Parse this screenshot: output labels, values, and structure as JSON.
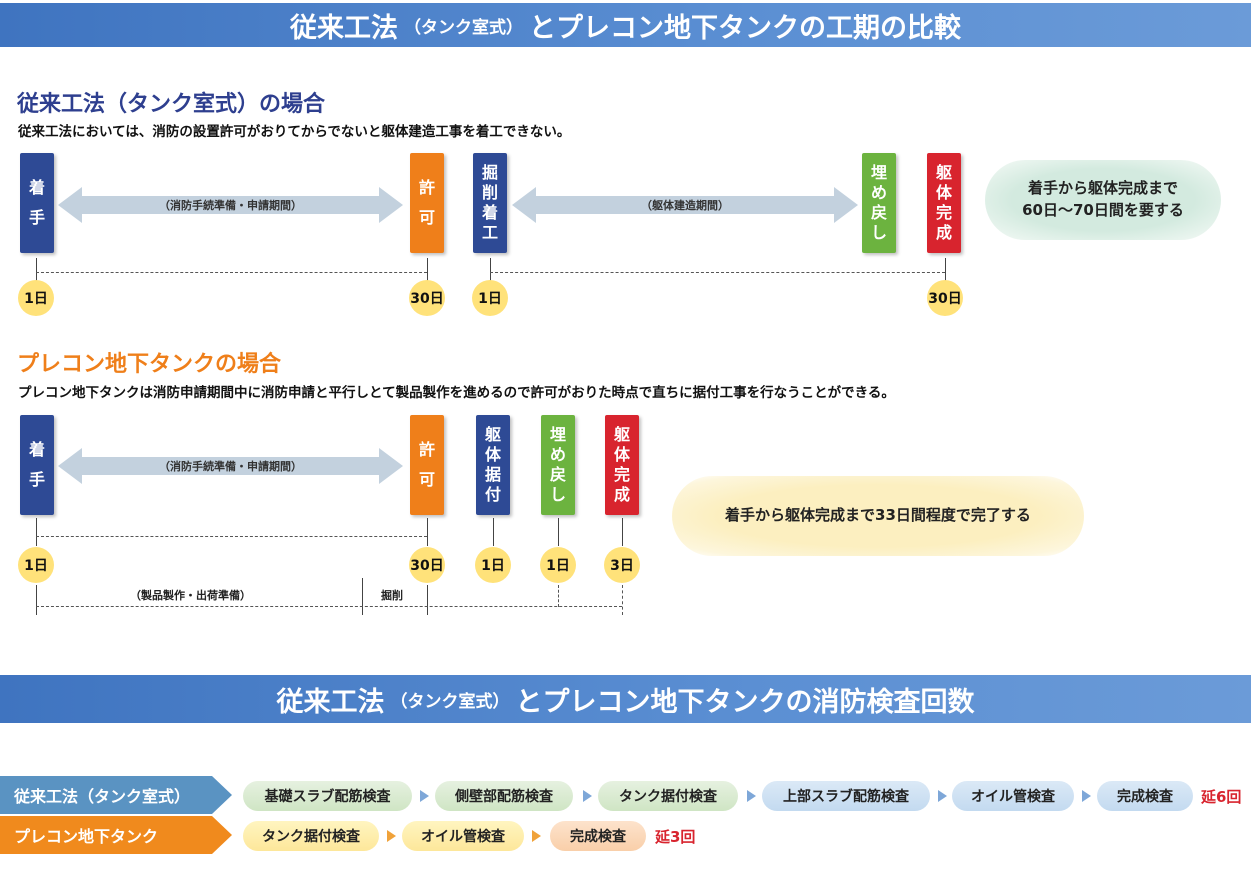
{
  "banner1": {
    "part1": "従来工法",
    "part2": "（タンク室式）",
    "part3": "とプレコン地下タンクの工期の比較"
  },
  "conventional": {
    "title": "従来工法（タンク室式）の場合",
    "desc": "従来工法においては、消防の設置許可がおりてからでないと躯体建造工事を着工できない。",
    "bars": [
      {
        "lines": [
          "着",
          "手"
        ],
        "color": "#2e4a95"
      },
      {
        "lines": [
          "許",
          "可"
        ],
        "color": "#ef7f1a"
      },
      {
        "lines": [
          "掘",
          "削",
          "着",
          "工"
        ],
        "color": "#2e4a95"
      },
      {
        "lines": [
          "埋",
          "め",
          "戻",
          "し"
        ],
        "color": "#6cb33f"
      },
      {
        "lines": [
          "躯",
          "体",
          "完",
          "成"
        ],
        "color": "#d8242e"
      }
    ],
    "arrow1": "（消防手続準備・申請期間）",
    "arrow2": "（躯体建造期間）",
    "days": [
      "1日",
      "30日",
      "1日",
      "30日"
    ],
    "note": [
      "着手から躯体完成まで",
      "60日〜70日間を要する"
    ]
  },
  "precon": {
    "title": "プレコン地下タンクの場合",
    "desc": "プレコン地下タンクは消防申請期間中に消防申請と平行しとて製品製作を進めるので許可がおりた時点で直ちに据付工事を行なうことができる。",
    "bars": [
      {
        "lines": [
          "着",
          "手"
        ],
        "color": "#2e4a95"
      },
      {
        "lines": [
          "許",
          "可"
        ],
        "color": "#ef7f1a"
      },
      {
        "lines": [
          "躯",
          "体",
          "据",
          "付"
        ],
        "color": "#2e4a95"
      },
      {
        "lines": [
          "埋",
          "め",
          "戻",
          "し"
        ],
        "color": "#6cb33f"
      },
      {
        "lines": [
          "躯",
          "体",
          "完",
          "成"
        ],
        "color": "#d8242e"
      }
    ],
    "arrow1": "（消防手続準備・申請期間）",
    "days": [
      "1日",
      "30日",
      "1日",
      "1日",
      "3日"
    ],
    "sub1": "（製品製作・出荷準備）",
    "sub2": "掘削",
    "note": "着手から躯体完成まで33日間程度で完了する"
  },
  "banner2": {
    "part1": "従来工法",
    "part2": "（タンク室式）",
    "part3": "とプレコン地下タンクの消防検査回数"
  },
  "inspections": {
    "conventional": {
      "label": "従来工法（タンク室式）",
      "steps": [
        "基礎スラブ配筋検査",
        "側壁部配筋検査",
        "タンク据付検査",
        "上部スラブ配筋検査",
        "オイル管検査",
        "完成検査"
      ],
      "total": "延6回"
    },
    "precon": {
      "label": "プレコン地下タンク",
      "steps": [
        "タンク据付検査",
        "オイル管検査",
        "完成検査"
      ],
      "total": "延3回"
    }
  },
  "colors": {
    "navy": "#2e4a95",
    "orange": "#ef7f1a",
    "green": "#6cb33f",
    "red": "#d8242e",
    "title_blue": "#2e3f8f",
    "title_orange": "#ef7f1a"
  }
}
